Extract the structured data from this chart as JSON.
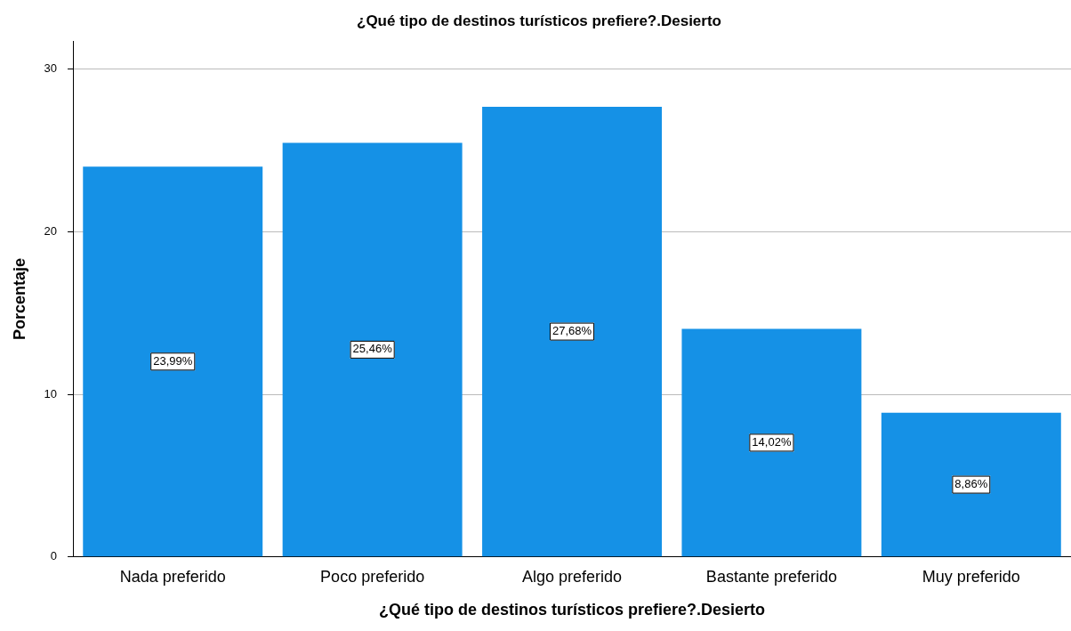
{
  "chart_data": {
    "type": "bar",
    "title": "¿Qué tipo de destinos turísticos prefiere?.Desierto",
    "xlabel": "¿Qué tipo de destinos turísticos prefiere?.Desierto",
    "ylabel": "Porcentaje",
    "categories": [
      "Nada preferido",
      "Poco preferido",
      "Algo preferido",
      "Bastante preferido",
      "Muy preferido"
    ],
    "values": [
      23.99,
      25.46,
      27.68,
      14.02,
      8.86
    ],
    "value_labels": [
      "23,99%",
      "25,46%",
      "27,68%",
      "14,02%",
      "8,86%"
    ],
    "color": "#1591e6",
    "ylim": [
      0,
      31.7
    ],
    "yticks": [
      0,
      10,
      20,
      30
    ],
    "grid": "y",
    "legend": false
  }
}
